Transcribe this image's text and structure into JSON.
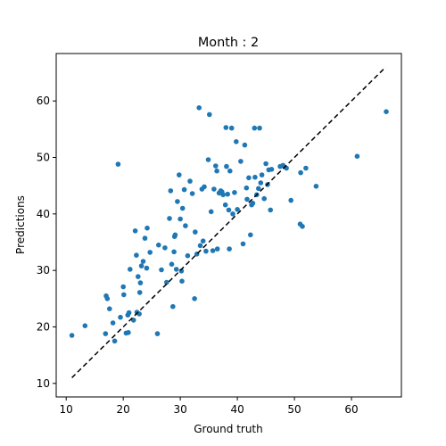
{
  "chart_data": {
    "type": "scatter",
    "title": "Month : 2",
    "xlabel": "Ground truth",
    "ylabel": "Predictions",
    "xlim": [
      8.25,
      68.75
    ],
    "ylim": [
      7.6,
      68.4
    ],
    "xticks": [
      10,
      20,
      30,
      40,
      50,
      60
    ],
    "yticks": [
      10,
      20,
      30,
      40,
      50,
      60
    ],
    "grid": false,
    "point_color": "#1f77b4",
    "reference_line": {
      "style": "dashed",
      "color": "#000000",
      "x": [
        11,
        66
      ],
      "y": [
        11,
        66
      ]
    },
    "points": [
      [
        11.0,
        18.5
      ],
      [
        13.3,
        20.2
      ],
      [
        16.9,
        18.8
      ],
      [
        17.0,
        25.5
      ],
      [
        17.2,
        25.0
      ],
      [
        17.6,
        23.2
      ],
      [
        18.2,
        20.7
      ],
      [
        18.5,
        17.5
      ],
      [
        19.1,
        48.8
      ],
      [
        19.5,
        21.7
      ],
      [
        20.0,
        27.1
      ],
      [
        20.1,
        25.7
      ],
      [
        20.5,
        18.9
      ],
      [
        20.8,
        22.1
      ],
      [
        20.9,
        19.0
      ],
      [
        21.0,
        22.5
      ],
      [
        21.2,
        30.2
      ],
      [
        21.8,
        21.2
      ],
      [
        22.1,
        37.0
      ],
      [
        22.3,
        32.7
      ],
      [
        22.4,
        22.6
      ],
      [
        22.6,
        28.9
      ],
      [
        22.8,
        22.3
      ],
      [
        22.9,
        26.1
      ],
      [
        23.0,
        27.8
      ],
      [
        23.2,
        30.8
      ],
      [
        23.5,
        31.6
      ],
      [
        23.8,
        35.7
      ],
      [
        24.1,
        30.4
      ],
      [
        24.2,
        37.5
      ],
      [
        24.7,
        33.2
      ],
      [
        26.0,
        18.8
      ],
      [
        26.2,
        34.5
      ],
      [
        26.7,
        30.1
      ],
      [
        27.3,
        34.0
      ],
      [
        27.6,
        27.9
      ],
      [
        28.1,
        39.2
      ],
      [
        28.3,
        44.1
      ],
      [
        28.5,
        31.1
      ],
      [
        28.7,
        23.6
      ],
      [
        28.9,
        33.3
      ],
      [
        29.0,
        36.0
      ],
      [
        29.1,
        36.3
      ],
      [
        29.3,
        30.2
      ],
      [
        29.5,
        42.2
      ],
      [
        29.8,
        46.9
      ],
      [
        30.0,
        39.1
      ],
      [
        30.2,
        29.9
      ],
      [
        30.3,
        28.1
      ],
      [
        30.4,
        41.0
      ],
      [
        30.7,
        44.3
      ],
      [
        30.9,
        37.9
      ],
      [
        31.3,
        32.6
      ],
      [
        31.7,
        45.8
      ],
      [
        32.1,
        43.6
      ],
      [
        32.5,
        25.0
      ],
      [
        32.6,
        36.8
      ],
      [
        32.9,
        32.9
      ],
      [
        33.3,
        58.8
      ],
      [
        33.5,
        34.4
      ],
      [
        33.8,
        44.4
      ],
      [
        34.0,
        35.2
      ],
      [
        34.2,
        44.8
      ],
      [
        34.5,
        33.4
      ],
      [
        34.9,
        49.6
      ],
      [
        35.1,
        57.6
      ],
      [
        35.4,
        40.4
      ],
      [
        35.7,
        33.5
      ],
      [
        35.9,
        44.4
      ],
      [
        36.2,
        48.5
      ],
      [
        36.4,
        47.6
      ],
      [
        36.5,
        33.8
      ],
      [
        36.8,
        43.7
      ],
      [
        37.1,
        44.1
      ],
      [
        37.3,
        43.9
      ],
      [
        37.5,
        43.4
      ],
      [
        37.9,
        41.6
      ],
      [
        38.0,
        55.3
      ],
      [
        38.1,
        48.4
      ],
      [
        38.3,
        43.5
      ],
      [
        38.5,
        40.7
      ],
      [
        38.6,
        33.8
      ],
      [
        38.7,
        47.6
      ],
      [
        39.0,
        55.2
      ],
      [
        39.2,
        40.0
      ],
      [
        39.5,
        43.8
      ],
      [
        39.8,
        52.8
      ],
      [
        40.0,
        40.8
      ],
      [
        40.6,
        49.3
      ],
      [
        41.0,
        34.7
      ],
      [
        41.3,
        52.2
      ],
      [
        41.6,
        44.6
      ],
      [
        41.7,
        42.6
      ],
      [
        42.0,
        46.4
      ],
      [
        42.3,
        36.3
      ],
      [
        42.5,
        41.6
      ],
      [
        42.7,
        41.9
      ],
      [
        43.0,
        55.2
      ],
      [
        43.1,
        46.5
      ],
      [
        43.4,
        43.4
      ],
      [
        43.7,
        44.5
      ],
      [
        43.9,
        55.2
      ],
      [
        44.1,
        45.5
      ],
      [
        44.3,
        46.9
      ],
      [
        44.7,
        42.7
      ],
      [
        45.0,
        48.9
      ],
      [
        45.3,
        45.2
      ],
      [
        45.5,
        47.8
      ],
      [
        45.8,
        40.7
      ],
      [
        46.0,
        47.9
      ],
      [
        47.5,
        48.4
      ],
      [
        48.0,
        48.6
      ],
      [
        48.6,
        48.1
      ],
      [
        49.4,
        42.4
      ],
      [
        51.0,
        38.2
      ],
      [
        51.1,
        47.3
      ],
      [
        51.4,
        37.8
      ],
      [
        52.0,
        48.1
      ],
      [
        53.8,
        44.9
      ],
      [
        61.0,
        50.2
      ],
      [
        66.1,
        58.1
      ]
    ]
  }
}
